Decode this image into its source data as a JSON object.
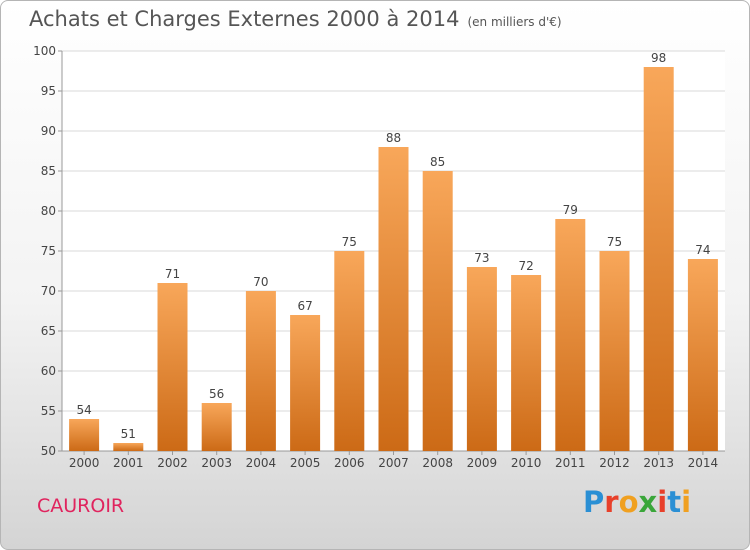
{
  "title": "Achats et Charges Externes 2000 à 2014",
  "unit": "(en milliers d'€)",
  "commune": "CAUROIR",
  "logo": {
    "text": "Proxiti",
    "letter_colors": [
      "#2a8fd4",
      "#e8402a",
      "#f0a020",
      "#3aa63a",
      "#e8402a",
      "#2a8fd4",
      "#f0a020"
    ]
  },
  "colors": {
    "bar_top": "#f8a75a",
    "bar_bottom": "#cc6a16",
    "grid": "#d9d9d9",
    "axis": "#999999"
  },
  "chart_data": {
    "type": "bar",
    "title": "Achats et Charges Externes 2000 à 2014",
    "xlabel": "",
    "ylabel": "",
    "categories": [
      "2000",
      "2001",
      "2002",
      "2003",
      "2004",
      "2005",
      "2006",
      "2007",
      "2008",
      "2009",
      "2010",
      "2011",
      "2012",
      "2013",
      "2014"
    ],
    "values": [
      54,
      51,
      71,
      56,
      70,
      67,
      75,
      88,
      85,
      73,
      72,
      79,
      75,
      98,
      74
    ],
    "ylim": [
      50,
      100
    ],
    "yticks": [
      50,
      55,
      60,
      65,
      70,
      75,
      80,
      85,
      90,
      95,
      100
    ],
    "grid": true,
    "data_labels": true
  }
}
